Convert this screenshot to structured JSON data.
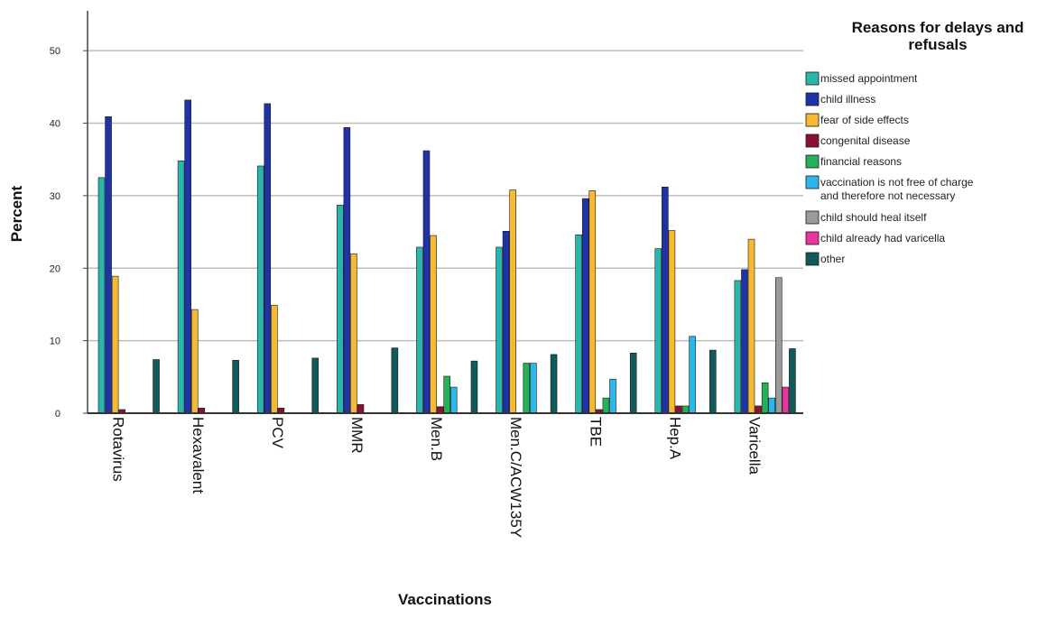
{
  "chart_data": {
    "type": "bar",
    "xlabel": "Vaccinations",
    "ylabel": "Percent",
    "ylim": [
      0,
      55
    ],
    "yticks": [
      0,
      10,
      20,
      30,
      40,
      50
    ],
    "grid": true,
    "legend_position": "right",
    "legend_title_lines": [
      "Reasons for delays and",
      "refusals"
    ],
    "categories": [
      "Rotavirus",
      "Hexavalent",
      "PCV",
      "MMR",
      "Men.B",
      "Men.C/ACW135Y",
      "TBE",
      "Hep.A",
      "Varicella"
    ],
    "series": [
      {
        "name": "missed appointment",
        "label_lines": [
          "missed appointment"
        ],
        "color": "#2bb5ad",
        "values": [
          32.5,
          34.8,
          34.1,
          28.7,
          22.9,
          22.9,
          24.6,
          22.7,
          18.3
        ]
      },
      {
        "name": "child illness",
        "label_lines": [
          "child illness"
        ],
        "color": "#1f33a8",
        "values": [
          40.9,
          43.2,
          42.7,
          39.4,
          36.2,
          25.1,
          29.6,
          31.2,
          19.8
        ]
      },
      {
        "name": "fear of side effects",
        "label_lines": [
          "fear of side effects"
        ],
        "color": "#f5b932",
        "values": [
          18.9,
          14.3,
          14.9,
          22.0,
          24.5,
          30.8,
          30.7,
          25.2,
          24.0
        ]
      },
      {
        "name": "congenital disease",
        "label_lines": [
          "congenital disease"
        ],
        "color": "#8a1034",
        "values": [
          0.5,
          0.7,
          0.7,
          1.2,
          0.9,
          0,
          0.5,
          1.0,
          1.0
        ]
      },
      {
        "name": "financial reasons",
        "label_lines": [
          "financial reasons"
        ],
        "color": "#27b05a",
        "values": [
          0,
          0,
          0,
          0,
          5.1,
          6.9,
          2.1,
          1.0,
          4.2
        ]
      },
      {
        "name": "vaccination is not free of charge and therefore not necessary",
        "label_lines": [
          "vaccination is not free of charge",
          "and therefore not necessary"
        ],
        "color": "#2bb7e8",
        "values": [
          0,
          0,
          0,
          0,
          3.6,
          6.9,
          4.7,
          10.6,
          2.1
        ]
      },
      {
        "name": "child should heal itself",
        "label_lines": [
          "child should heal itself"
        ],
        "color": "#9a9a9a",
        "values": [
          0,
          0,
          0,
          0,
          0,
          0,
          0,
          0,
          18.7
        ]
      },
      {
        "name": "child already had varicella",
        "label_lines": [
          "child already had varicella"
        ],
        "color": "#e8359f",
        "values": [
          0,
          0,
          0,
          0,
          0,
          0,
          0,
          0,
          3.6
        ]
      },
      {
        "name": "other",
        "label_lines": [
          "other"
        ],
        "color": "#0f5a5a",
        "values": [
          7.4,
          7.3,
          7.6,
          9.0,
          7.2,
          8.1,
          8.3,
          8.7,
          8.9
        ]
      }
    ]
  }
}
